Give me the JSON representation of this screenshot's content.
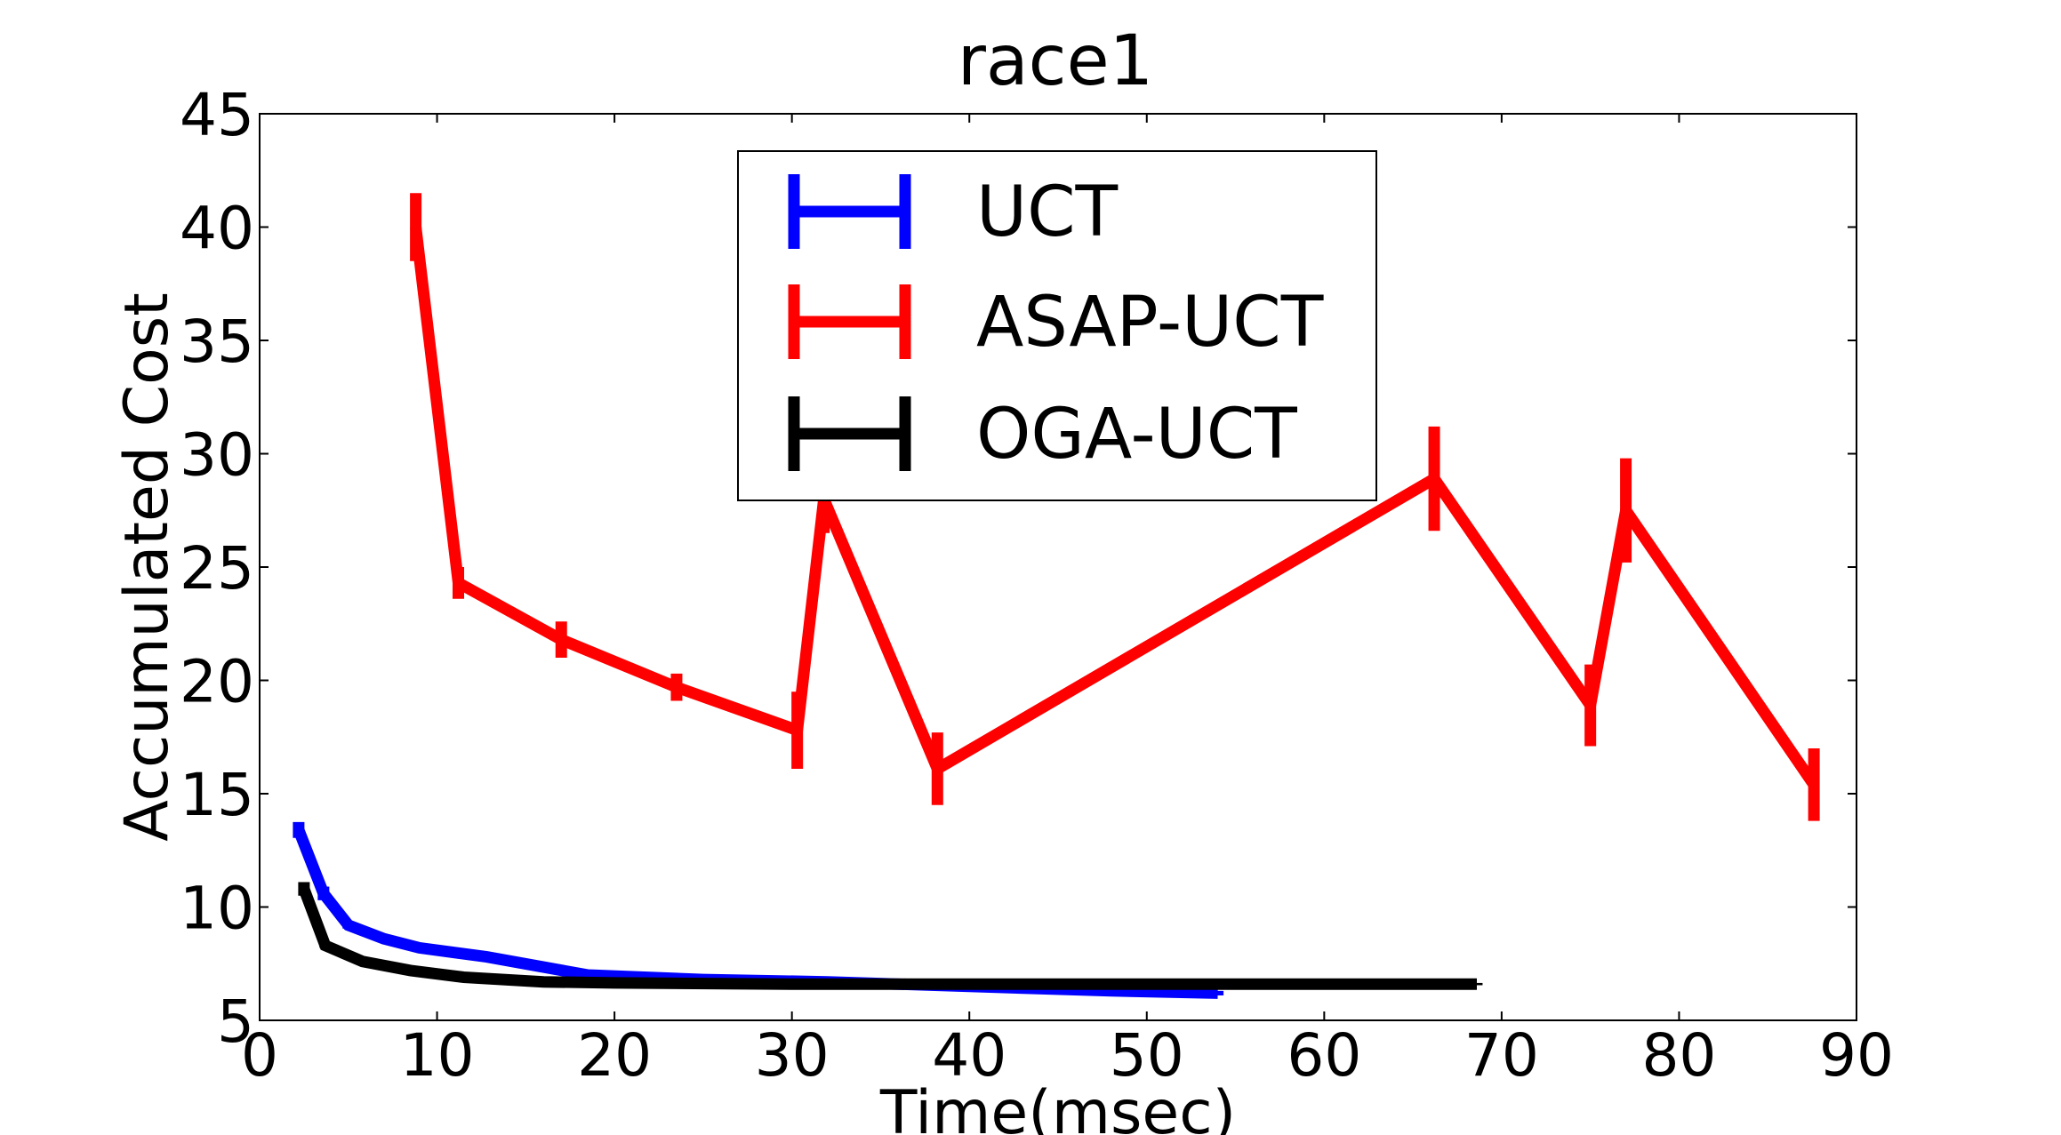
{
  "chart_data": {
    "type": "line",
    "title": "race1",
    "xlabel": "Time(msec)",
    "ylabel": "Accumulated Cost",
    "xlim": [
      0,
      90
    ],
    "ylim": [
      5,
      45
    ],
    "xticks": [
      "0",
      "10",
      "20",
      "30",
      "40",
      "50",
      "60",
      "70",
      "80",
      "90"
    ],
    "yticks": [
      "5",
      "10",
      "15",
      "20",
      "25",
      "30",
      "35",
      "40",
      "45"
    ],
    "grid": false,
    "legend_position": "top-center",
    "error_bars": true,
    "series": [
      {
        "name": "UCT",
        "color": "#0000ff",
        "x": [
          2.2,
          3.6,
          5.0,
          7.0,
          9.0,
          12.8,
          18.5,
          25.0,
          32.0,
          40.0,
          48.0,
          54.0
        ],
        "y": [
          13.4,
          10.6,
          9.2,
          8.6,
          8.2,
          7.8,
          7.0,
          6.8,
          6.7,
          6.5,
          6.3,
          6.2
        ],
        "err": [
          0.35,
          0.3,
          0.15,
          0.1,
          0.1,
          0.1,
          0.1,
          0.1,
          0.1,
          0.1,
          0.1,
          0.1
        ]
      },
      {
        "name": "ASAP-UCT",
        "color": "#ff0000",
        "x": [
          8.8,
          11.2,
          17.0,
          23.5,
          30.3,
          31.8,
          38.2,
          66.2,
          75.0,
          77.0,
          87.6
        ],
        "y": [
          40.0,
          24.3,
          21.8,
          19.7,
          17.8,
          28.0,
          16.1,
          28.9,
          18.9,
          27.5,
          15.4
        ],
        "err": [
          1.5,
          0.7,
          0.8,
          0.6,
          1.7,
          1.5,
          1.6,
          2.3,
          1.8,
          2.3,
          1.6
        ]
      },
      {
        "name": "OGA-UCT",
        "color": "#000000",
        "x": [
          2.5,
          3.7,
          5.8,
          8.5,
          11.5,
          16.0,
          20.0,
          30.0,
          40.0,
          50.0,
          60.0,
          68.6
        ],
        "y": [
          10.8,
          8.3,
          7.6,
          7.2,
          6.9,
          6.7,
          6.65,
          6.6,
          6.6,
          6.6,
          6.6,
          6.6
        ],
        "err": [
          0.3,
          0.1,
          0.1,
          0.1,
          0.1,
          0.05,
          0.05,
          0.05,
          0.05,
          0.05,
          0.05,
          0.05
        ]
      }
    ]
  }
}
